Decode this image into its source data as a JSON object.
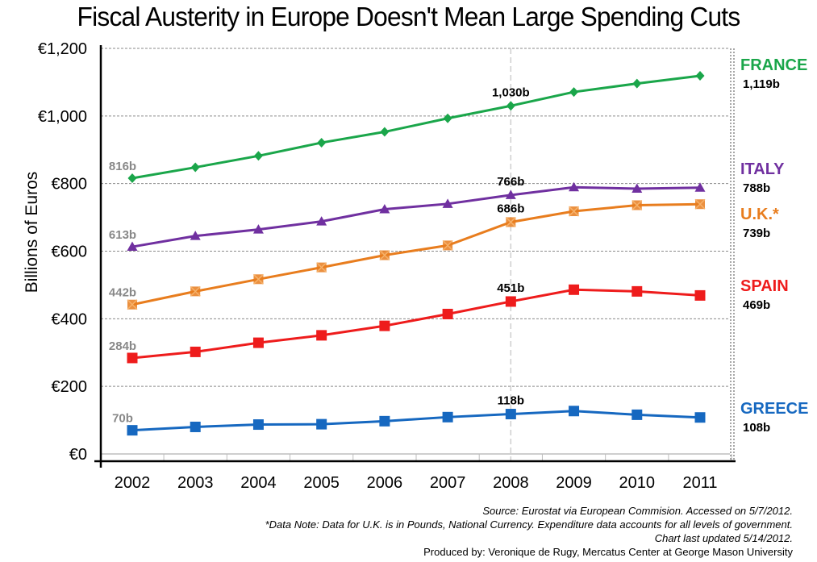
{
  "chart_data": {
    "type": "line",
    "title": "Fiscal Austerity in Europe Doesn't Mean Large Spending Cuts",
    "xlabel": "",
    "ylabel": "Billions of Euros",
    "ylim": [
      0,
      1200
    ],
    "y_ticks": [
      0,
      200,
      400,
      600,
      800,
      1000,
      1200
    ],
    "y_tick_labels": [
      "€0",
      "€200",
      "€400",
      "€600",
      "€800",
      "€1,000",
      "€1,200"
    ],
    "grid": true,
    "reference_line": {
      "x": "2008",
      "style": "dashed"
    },
    "categories": [
      "2002",
      "2003",
      "2004",
      "2005",
      "2006",
      "2007",
      "2008",
      "2009",
      "2010",
      "2011"
    ],
    "legend_placement": "right",
    "series": [
      {
        "name": "FRANCE",
        "color": "#1aa64a",
        "marker": "diamond",
        "values": [
          816,
          848,
          882,
          921,
          953,
          993,
          1030,
          1071,
          1096,
          1119
        ],
        "start_label": "816b",
        "mid_label": "1,030b",
        "end_label": "1,119b"
      },
      {
        "name": "ITALY",
        "color": "#7030a0",
        "marker": "triangle",
        "values": [
          613,
          645,
          664,
          688,
          724,
          740,
          766,
          789,
          785,
          788
        ],
        "start_label": "613b",
        "mid_label": "766b",
        "end_label": "788b"
      },
      {
        "name": "U.K.*",
        "color": "#e87d1e",
        "marker": "square-x",
        "values": [
          442,
          481,
          517,
          552,
          588,
          617,
          686,
          718,
          736,
          739
        ],
        "start_label": "442b",
        "mid_label": "686b",
        "end_label": "739b"
      },
      {
        "name": "SPAIN",
        "color": "#ee1c1c",
        "marker": "square",
        "values": [
          284,
          302,
          329,
          351,
          379,
          414,
          451,
          486,
          481,
          469
        ],
        "start_label": "284b",
        "mid_label": "451b",
        "end_label": "469b"
      },
      {
        "name": "GREECE",
        "color": "#1668c0",
        "marker": "square",
        "values": [
          70,
          80,
          87,
          88,
          97,
          109,
          118,
          127,
          116,
          108
        ],
        "start_label": "70b",
        "mid_label": "118b",
        "end_label": "108b"
      }
    ]
  },
  "footnotes": {
    "source": "Source: Eurostat via European Commision. Accessed on 5/7/2012.",
    "data_note": "*Data Note: Data for U.K. is in Pounds, National Currency. Expenditure data accounts for all levels of government.",
    "updated": "Chart last updated 5/14/2012.",
    "produced_by": "Produced by: Veronique de Rugy, Mercatus Center at George Mason University"
  }
}
